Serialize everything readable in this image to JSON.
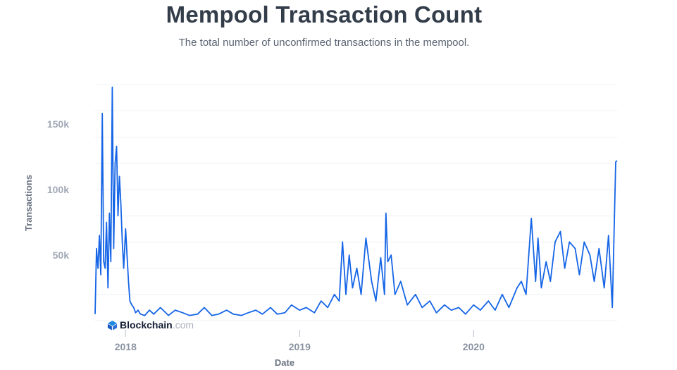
{
  "chart_data": {
    "type": "line",
    "title": "Mempool Transaction Count",
    "subtitle": "The total number of unconfirmed transactions in the mempool.",
    "xlabel": "Date",
    "ylabel": "Transactions",
    "x_range": [
      "2017-10-29",
      "2020-10-28"
    ],
    "ylim": [
      0,
      180000
    ],
    "y_ticks": [
      {
        "value": 50000,
        "label": "50k"
      },
      {
        "value": 100000,
        "label": "100k"
      },
      {
        "value": 150000,
        "label": "150k"
      }
    ],
    "x_ticks": [
      {
        "value": "2018-01-01",
        "label": "2018"
      },
      {
        "value": "2019-01-01",
        "label": "2019"
      },
      {
        "value": "2020-01-01",
        "label": "2020"
      }
    ],
    "grid": true,
    "line_color": "#1565e6",
    "series": [
      {
        "x": [
          "2017-10-29",
          "2017-11-01",
          "2017-11-04",
          "2017-11-07",
          "2017-11-10",
          "2017-11-13",
          "2017-11-16",
          "2017-11-19",
          "2017-11-22",
          "2017-11-25",
          "2017-11-28",
          "2017-12-01",
          "2017-12-04",
          "2017-12-07",
          "2017-12-10",
          "2017-12-13",
          "2017-12-16",
          "2017-12-19",
          "2017-12-22",
          "2017-12-25",
          "2017-12-28",
          "2018-01-01",
          "2018-01-04",
          "2018-01-07",
          "2018-01-10",
          "2018-01-14",
          "2018-01-18",
          "2018-01-22",
          "2018-01-27",
          "2018-02-01",
          "2018-02-10",
          "2018-02-20",
          "2018-03-01",
          "2018-03-15",
          "2018-04-01",
          "2018-04-15",
          "2018-05-01",
          "2018-05-15",
          "2018-06-01",
          "2018-06-15",
          "2018-07-01",
          "2018-07-15",
          "2018-08-01",
          "2018-08-15",
          "2018-09-01",
          "2018-09-15",
          "2018-10-01",
          "2018-10-15",
          "2018-11-01",
          "2018-11-15",
          "2018-12-01",
          "2018-12-15",
          "2019-01-01",
          "2019-01-15",
          "2019-02-01",
          "2019-02-15",
          "2019-03-01",
          "2019-03-15",
          "2019-03-25",
          "2019-04-01",
          "2019-04-08",
          "2019-04-15",
          "2019-04-22",
          "2019-05-01",
          "2019-05-10",
          "2019-05-20",
          "2019-06-01",
          "2019-06-10",
          "2019-06-20",
          "2019-06-28",
          "2019-07-01",
          "2019-07-05",
          "2019-07-12",
          "2019-07-20",
          "2019-08-01",
          "2019-08-15",
          "2019-09-01",
          "2019-09-15",
          "2019-10-01",
          "2019-10-15",
          "2019-11-01",
          "2019-11-15",
          "2019-12-01",
          "2019-12-15",
          "2020-01-01",
          "2020-01-15",
          "2020-02-01",
          "2020-02-15",
          "2020-03-01",
          "2020-03-15",
          "2020-04-01",
          "2020-04-10",
          "2020-04-20",
          "2020-05-01",
          "2020-05-10",
          "2020-05-15",
          "2020-05-22",
          "2020-06-01",
          "2020-06-10",
          "2020-06-20",
          "2020-07-01",
          "2020-07-10",
          "2020-07-20",
          "2020-08-01",
          "2020-08-10",
          "2020-08-20",
          "2020-09-01",
          "2020-09-10",
          "2020-09-20",
          "2020-10-01",
          "2020-10-10",
          "2020-10-18",
          "2020-10-25",
          "2020-10-28"
        ],
        "values": [
          5000,
          55000,
          40000,
          65000,
          35000,
          158000,
          45000,
          40000,
          75000,
          25000,
          82000,
          45000,
          178000,
          55000,
          120000,
          133000,
          80000,
          110000,
          90000,
          60000,
          40000,
          70000,
          50000,
          30000,
          15000,
          12000,
          10000,
          6000,
          8000,
          5000,
          4000,
          8000,
          5000,
          10000,
          4000,
          8000,
          6000,
          4000,
          5000,
          10000,
          4000,
          5000,
          8000,
          5000,
          4000,
          6000,
          8000,
          5000,
          10000,
          5000,
          6000,
          12000,
          8000,
          10000,
          6000,
          15000,
          10000,
          20000,
          15000,
          60000,
          20000,
          50000,
          25000,
          40000,
          20000,
          63000,
          30000,
          15000,
          48000,
          20000,
          82000,
          45000,
          50000,
          20000,
          30000,
          12000,
          20000,
          10000,
          15000,
          6000,
          12000,
          8000,
          10000,
          5000,
          12000,
          8000,
          15000,
          8000,
          20000,
          10000,
          25000,
          30000,
          20000,
          78000,
          30000,
          63000,
          25000,
          45000,
          30000,
          60000,
          68000,
          40000,
          60000,
          55000,
          35000,
          60000,
          50000,
          30000,
          55000,
          25000,
          65000,
          10000,
          121000,
          122000
        ]
      }
    ]
  },
  "watermark": {
    "brand": "Blockchain",
    "tld": ".com"
  }
}
